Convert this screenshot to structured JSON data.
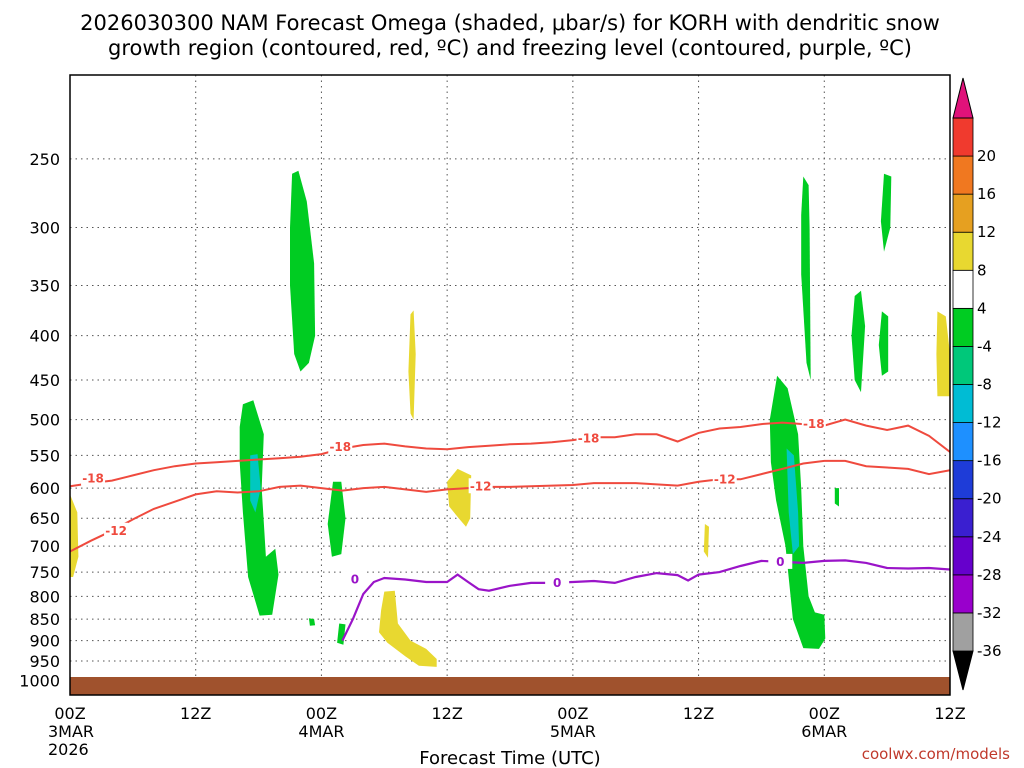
{
  "chart_data": {
    "type": "contour",
    "title_line1": "2026030300 NAM Forecast Omega (shaded, μbar/s) for KORH with dendritic snow",
    "title_line2": "growth region (contoured, red, ºC) and freezing level (contoured, purple, ºC)",
    "xlabel": "Forecast Time (UTC)",
    "credit": "coolwx.com/models",
    "x_range_hours": [
      0,
      84
    ],
    "y_range_hpa": [
      200,
      1040
    ],
    "y_scale": "log",
    "y_ticks": [
      250,
      300,
      350,
      400,
      450,
      500,
      550,
      600,
      650,
      700,
      750,
      800,
      850,
      900,
      950,
      1000
    ],
    "x_ticks": [
      {
        "h": 0,
        "lines": [
          "00Z",
          "3MAR",
          "2026"
        ]
      },
      {
        "h": 12,
        "lines": [
          "12Z"
        ]
      },
      {
        "h": 24,
        "lines": [
          "00Z",
          "4MAR"
        ]
      },
      {
        "h": 36,
        "lines": [
          "12Z"
        ]
      },
      {
        "h": 48,
        "lines": [
          "00Z",
          "5MAR"
        ]
      },
      {
        "h": 60,
        "lines": [
          "12Z"
        ]
      },
      {
        "h": 72,
        "lines": [
          "00Z",
          "6MAR"
        ]
      },
      {
        "h": 84,
        "lines": [
          "12Z"
        ]
      }
    ],
    "grid": true,
    "colorbar": {
      "colors": [
        "#000000",
        "#a0a0a0",
        "#9900cc",
        "#6600cc",
        "#3a1fd0",
        "#1e3cd8",
        "#1e90ff",
        "#00bcd4",
        "#00c87a",
        "#00cc22",
        "#ffffff",
        "#e8d830",
        "#e6a020",
        "#f07820",
        "#f03a2e",
        "#e0127a"
      ],
      "labels": [
        "-36",
        "-32",
        "-28",
        "-24",
        "-20",
        "-16",
        "-12",
        "-8",
        "-4",
        "4",
        "8",
        "12",
        "16",
        "20"
      ]
    },
    "contour_labels": {
      "red_upper": "-18",
      "red_lower": "-12",
      "purple": "0"
    },
    "red_upper_contour": [
      [
        0,
        597
      ],
      [
        2,
        592
      ],
      [
        4,
        588
      ],
      [
        6,
        580
      ],
      [
        8,
        572
      ],
      [
        10,
        566
      ],
      [
        12,
        562
      ],
      [
        14,
        560
      ],
      [
        16,
        558
      ],
      [
        18,
        556
      ],
      [
        20,
        554
      ],
      [
        22,
        552
      ],
      [
        24,
        548
      ],
      [
        26,
        540
      ],
      [
        28,
        535
      ],
      [
        30,
        533
      ],
      [
        32,
        537
      ],
      [
        34,
        540
      ],
      [
        36,
        541
      ],
      [
        38,
        538
      ],
      [
        40,
        536
      ],
      [
        42,
        534
      ],
      [
        44,
        533
      ],
      [
        46,
        531
      ],
      [
        48,
        528
      ],
      [
        50,
        524
      ],
      [
        52,
        524
      ],
      [
        54,
        520
      ],
      [
        56,
        520
      ],
      [
        58,
        530
      ],
      [
        60,
        518
      ],
      [
        62,
        512
      ],
      [
        64,
        510
      ],
      [
        66,
        506
      ],
      [
        68,
        504
      ],
      [
        70,
        506
      ],
      [
        72,
        508
      ],
      [
        74,
        500
      ],
      [
        76,
        508
      ],
      [
        78,
        514
      ],
      [
        80,
        508
      ],
      [
        82,
        522
      ],
      [
        84,
        545
      ]
    ],
    "red_lower_contour": [
      [
        0,
        710
      ],
      [
        2,
        690
      ],
      [
        4,
        672
      ],
      [
        6,
        652
      ],
      [
        8,
        634
      ],
      [
        10,
        622
      ],
      [
        12,
        610
      ],
      [
        14,
        605
      ],
      [
        16,
        607
      ],
      [
        18,
        605
      ],
      [
        20,
        598
      ],
      [
        22,
        596
      ],
      [
        24,
        600
      ],
      [
        26,
        604
      ],
      [
        28,
        600
      ],
      [
        30,
        598
      ],
      [
        32,
        602
      ],
      [
        34,
        606
      ],
      [
        36,
        602
      ],
      [
        38,
        600
      ],
      [
        40,
        598
      ],
      [
        42,
        598
      ],
      [
        44,
        597
      ],
      [
        46,
        596
      ],
      [
        48,
        595
      ],
      [
        50,
        592
      ],
      [
        52,
        592
      ],
      [
        54,
        592
      ],
      [
        56,
        594
      ],
      [
        58,
        596
      ],
      [
        60,
        590
      ],
      [
        62,
        586
      ],
      [
        64,
        586
      ],
      [
        66,
        578
      ],
      [
        68,
        570
      ],
      [
        70,
        562
      ],
      [
        72,
        558
      ],
      [
        74,
        558
      ],
      [
        76,
        566
      ],
      [
        78,
        568
      ],
      [
        80,
        570
      ],
      [
        82,
        578
      ],
      [
        84,
        572
      ]
    ],
    "purple_contour": [
      [
        26,
        900
      ],
      [
        27,
        850
      ],
      [
        28,
        795
      ],
      [
        29,
        770
      ],
      [
        30,
        762
      ],
      [
        32,
        765
      ],
      [
        34,
        770
      ],
      [
        36,
        770
      ],
      [
        37,
        755
      ],
      [
        38,
        770
      ],
      [
        39,
        785
      ],
      [
        40,
        788
      ],
      [
        42,
        778
      ],
      [
        44,
        772
      ],
      [
        46,
        772
      ],
      [
        48,
        770
      ],
      [
        50,
        768
      ],
      [
        52,
        772
      ],
      [
        54,
        760
      ],
      [
        56,
        752
      ],
      [
        58,
        756
      ],
      [
        59,
        767
      ],
      [
        60,
        755
      ],
      [
        62,
        750
      ],
      [
        64,
        738
      ],
      [
        66,
        728
      ],
      [
        68,
        730
      ],
      [
        70,
        732
      ],
      [
        72,
        728
      ],
      [
        74,
        727
      ],
      [
        76,
        732
      ],
      [
        78,
        742
      ],
      [
        80,
        743
      ],
      [
        82,
        742
      ],
      [
        84,
        745
      ]
    ],
    "omega_regions": [
      {
        "color": "#00cc22",
        "pts": [
          [
            21.2,
            260
          ],
          [
            21.8,
            258
          ],
          [
            22.6,
            280
          ],
          [
            23.3,
            330
          ],
          [
            23.4,
            400
          ],
          [
            22.8,
            430
          ],
          [
            22.0,
            440
          ],
          [
            21.4,
            420
          ],
          [
            21.0,
            350
          ],
          [
            21.0,
            300
          ]
        ]
      },
      {
        "color": "#00cc22",
        "pts": [
          [
            16.5,
            480
          ],
          [
            17.5,
            475
          ],
          [
            18.5,
            520
          ],
          [
            18.3,
            600
          ],
          [
            18.7,
            720
          ],
          [
            19.6,
            705
          ],
          [
            19.9,
            755
          ],
          [
            19.3,
            840
          ],
          [
            18.1,
            842
          ],
          [
            17.0,
            760
          ],
          [
            16.5,
            640
          ],
          [
            16.2,
            560
          ],
          [
            16.2,
            510
          ]
        ]
      },
      {
        "color": "#00c8c0",
        "pts": [
          [
            17.2,
            550
          ],
          [
            17.9,
            548
          ],
          [
            18.2,
            600
          ],
          [
            17.7,
            640
          ],
          [
            17.2,
            620
          ]
        ]
      },
      {
        "color": "#00cc22",
        "pts": [
          [
            25.1,
            590
          ],
          [
            25.9,
            590
          ],
          [
            26.3,
            650
          ],
          [
            25.9,
            715
          ],
          [
            25.0,
            720
          ],
          [
            24.6,
            660
          ]
        ]
      },
      {
        "color": "#00cc22",
        "pts": [
          [
            22.8,
            848
          ],
          [
            23.3,
            850
          ],
          [
            23.4,
            864
          ],
          [
            22.9,
            865
          ]
        ]
      },
      {
        "color": "#00cc22",
        "pts": [
          [
            25.7,
            860
          ],
          [
            26.3,
            862
          ],
          [
            26.1,
            910
          ],
          [
            25.5,
            905
          ]
        ]
      },
      {
        "color": "#e8d830",
        "pts": [
          [
            30.0,
            790
          ],
          [
            31.0,
            788
          ],
          [
            31.3,
            860
          ],
          [
            32.5,
            900
          ],
          [
            34.0,
            920
          ],
          [
            35.0,
            945
          ],
          [
            35.0,
            965
          ],
          [
            33.3,
            962
          ],
          [
            32.0,
            938
          ],
          [
            30.3,
            905
          ],
          [
            29.5,
            880
          ],
          [
            29.7,
            830
          ]
        ]
      },
      {
        "color": "#e8d830",
        "pts": [
          [
            32.5,
            378
          ],
          [
            32.8,
            374
          ],
          [
            33.0,
            420
          ],
          [
            32.8,
            500
          ],
          [
            32.5,
            492
          ],
          [
            32.3,
            440
          ]
        ]
      },
      {
        "color": "#e8d830",
        "pts": [
          [
            36.0,
            590
          ],
          [
            37.0,
            570
          ],
          [
            38.3,
            580
          ],
          [
            38.2,
            650
          ],
          [
            37.8,
            665
          ],
          [
            37.1,
            650
          ],
          [
            36.2,
            630
          ]
        ]
      },
      {
        "color": "#e8d830",
        "pts": [
          [
            0,
            610
          ],
          [
            0.7,
            640
          ],
          [
            0.8,
            720
          ],
          [
            0.3,
            760
          ],
          [
            0,
            760
          ]
        ]
      },
      {
        "color": "#e8d830",
        "pts": [
          [
            60.6,
            660
          ],
          [
            61.0,
            665
          ],
          [
            60.9,
            722
          ],
          [
            60.5,
            710
          ]
        ]
      },
      {
        "color": "#00cc22",
        "pts": [
          [
            67.5,
            445
          ],
          [
            68.5,
            460
          ],
          [
            69.5,
            520
          ],
          [
            69.8,
            600
          ],
          [
            70.0,
            700
          ],
          [
            70.5,
            800
          ],
          [
            71.1,
            835
          ],
          [
            72.0,
            840
          ],
          [
            72.1,
            895
          ],
          [
            71.5,
            920
          ],
          [
            70.0,
            918
          ],
          [
            69.0,
            850
          ],
          [
            68.3,
            700
          ],
          [
            67.4,
            620
          ],
          [
            66.9,
            560
          ],
          [
            66.8,
            500
          ]
        ]
      },
      {
        "color": "#00c8c0",
        "pts": [
          [
            68.4,
            540
          ],
          [
            69.1,
            550
          ],
          [
            69.5,
            640
          ],
          [
            69.6,
            700
          ],
          [
            69.0,
            715
          ],
          [
            68.6,
            640
          ]
        ]
      },
      {
        "color": "#00cc22",
        "pts": [
          [
            70.0,
            262
          ],
          [
            70.5,
            268
          ],
          [
            70.6,
            300
          ],
          [
            70.7,
            450
          ],
          [
            70.3,
            430
          ],
          [
            69.8,
            340
          ],
          [
            69.8,
            290
          ]
        ]
      },
      {
        "color": "#00cc22",
        "pts": [
          [
            77.7,
            260
          ],
          [
            78.4,
            262
          ],
          [
            78.3,
            300
          ],
          [
            77.7,
            320
          ],
          [
            77.4,
            295
          ]
        ]
      },
      {
        "color": "#00cc22",
        "pts": [
          [
            74.9,
            360
          ],
          [
            75.5,
            355
          ],
          [
            75.9,
            390
          ],
          [
            75.5,
            465
          ],
          [
            74.9,
            450
          ],
          [
            74.6,
            400
          ]
        ]
      },
      {
        "color": "#00cc22",
        "pts": [
          [
            77.5,
            375
          ],
          [
            78.1,
            380
          ],
          [
            78.1,
            440
          ],
          [
            77.5,
            445
          ],
          [
            77.2,
            410
          ]
        ]
      },
      {
        "color": "#00cc22",
        "pts": [
          [
            73.0,
            600
          ],
          [
            73.4,
            600
          ],
          [
            73.4,
            630
          ],
          [
            73.0,
            625
          ]
        ]
      },
      {
        "color": "#e8d830",
        "pts": [
          [
            82.8,
            375
          ],
          [
            83.6,
            380
          ],
          [
            84,
            420
          ],
          [
            84,
            470
          ],
          [
            82.8,
            470
          ],
          [
            82.7,
            420
          ]
        ]
      }
    ]
  }
}
